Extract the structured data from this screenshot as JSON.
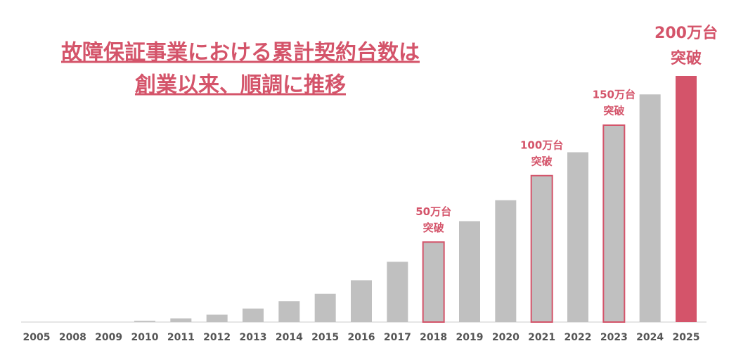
{
  "chart_data": {
    "type": "bar",
    "title": [
      "故障保証事業における累計契約台数は",
      "創業以来、順調に推移"
    ],
    "categories": [
      "2005",
      "2008",
      "2009",
      "2010",
      "2011",
      "2012",
      "2013",
      "2014",
      "2015",
      "2016",
      "2017",
      "2018",
      "2019",
      "2020",
      "2021",
      "2022",
      "2023",
      "2024",
      "2025"
    ],
    "values": [
      0,
      0,
      0,
      1,
      3,
      6,
      11,
      17,
      23,
      34,
      49,
      65,
      82,
      99,
      119,
      138,
      160,
      185,
      200
    ],
    "color": "#c0c0c0",
    "highlight_color": "#d4546a",
    "annotations": [
      {
        "x": "2018",
        "lines": [
          "50万台",
          "突破"
        ],
        "style": "outline"
      },
      {
        "x": "2021",
        "lines": [
          "100万台",
          "突破"
        ],
        "style": "outline"
      },
      {
        "x": "2023",
        "lines": [
          "150万台",
          "突破"
        ],
        "style": "outline"
      },
      {
        "x": "2025",
        "lines": [
          "200万台",
          "突破"
        ],
        "style": "fill"
      }
    ]
  }
}
